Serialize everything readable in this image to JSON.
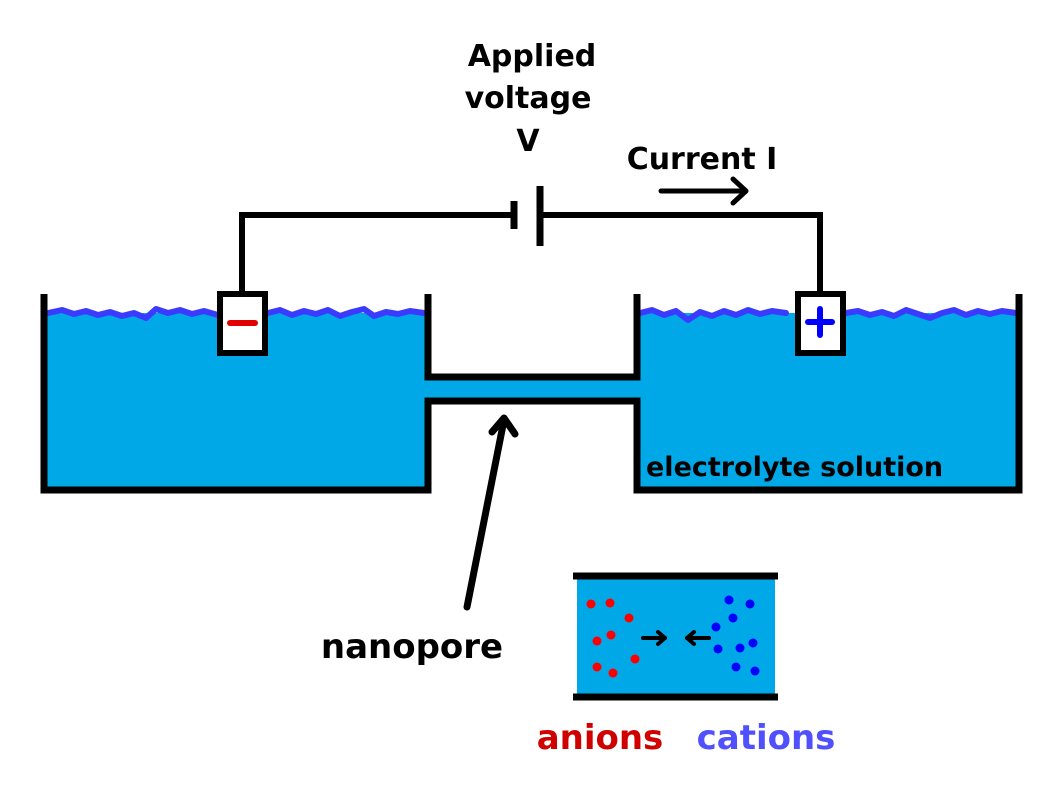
{
  "labels": {
    "voltage_line1": "Applied",
    "voltage_line2": "voltage",
    "voltage_symbol": "V",
    "current": "Current I",
    "electrolyte": "electrolyte solution",
    "nanopore": "nanopore",
    "anions": "anions",
    "cations": "cations"
  },
  "electrodes": {
    "negative_sign": "−",
    "positive_sign": "+"
  },
  "colors": {
    "background": "#ffffff",
    "water": "#00a8e8",
    "wave": "#3b3bff",
    "line": "#000000",
    "anion": "#ff0000",
    "cation": "#0000ff",
    "anions_label": "#d00000",
    "cations_label": "#5050ff"
  }
}
